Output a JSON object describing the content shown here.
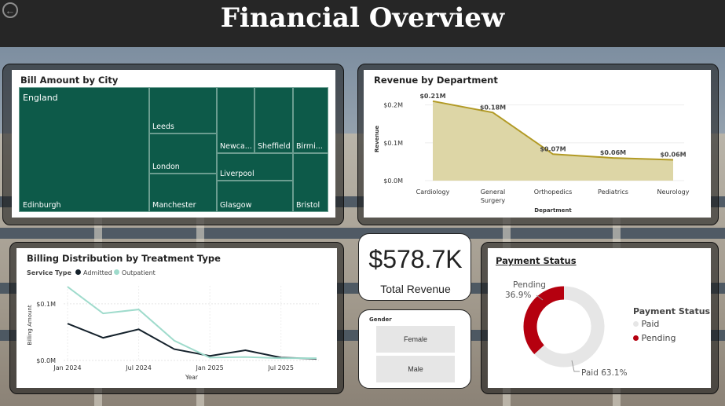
{
  "header": {
    "title": "Financial Overview",
    "back_icon": "arrow-left-circle-icon"
  },
  "colors": {
    "treemap": "#0d5a49",
    "area_line": "#b29a25",
    "area_fill": "#ddd6a6",
    "admitted": "#14212b",
    "outpatient": "#9fdbcc",
    "pending": "#b5000f",
    "paid": "#e6e6e6"
  },
  "treemap": {
    "title": "Bill Amount by City",
    "group_label": "England",
    "cities": [
      "Edinburgh",
      "Leeds",
      "London",
      "Manchester",
      "Newca...",
      "Sheffield",
      "Birmi...",
      "Liverpool",
      "Glasgow",
      "Bristol"
    ]
  },
  "revenue_chart": {
    "title": "Revenue by Department",
    "xlabel": "Department",
    "ylabel": "Revenue",
    "yticks": [
      "$0.2M",
      "$0.1M",
      "$0.0M"
    ],
    "data_labels": [
      "$0.21M",
      "$0.18M",
      "$0.07M",
      "$0.06M",
      "$0.06M"
    ],
    "categories": [
      [
        "Cardiology"
      ],
      [
        "General",
        "Surgery"
      ],
      [
        "Orthopedics"
      ],
      [
        "Pediatrics"
      ],
      [
        "Neurology"
      ]
    ]
  },
  "billing_chart": {
    "title": "Billing Distribution by Treatment Type",
    "legend_title": "Service Type",
    "series_names": [
      "Admitted",
      "Outpatient"
    ],
    "yticks": [
      "$0.1M",
      "$0.0M"
    ],
    "xticks": [
      "Jan 2024",
      "Jul 2024",
      "Jan 2025",
      "Jul 2025"
    ],
    "ylabel": "Billing Amount",
    "xlabel": "Year"
  },
  "kpi": {
    "value": "$578.7K",
    "label": "Total Revenue"
  },
  "gender_slicer": {
    "title": "Gender",
    "options": [
      "Female",
      "Male"
    ]
  },
  "payment": {
    "title": "Payment Status",
    "legend_title": "Payment Status",
    "legend": [
      "Paid",
      "Pending"
    ],
    "pending_label": "Pending",
    "pending_pct": "36.9%",
    "paid_label": "Paid 63.1%"
  },
  "chart_data": [
    {
      "type": "area",
      "title": "Revenue by Department",
      "categories": [
        "Cardiology",
        "General Surgery",
        "Orthopedics",
        "Pediatrics",
        "Neurology"
      ],
      "values": [
        0.21,
        0.18,
        0.07,
        0.06,
        0.055
      ],
      "ylim": [
        0,
        0.22
      ],
      "xlabel": "Department",
      "ylabel": "Revenue"
    },
    {
      "type": "line",
      "title": "Billing Distribution by Treatment Type",
      "x": [
        "2024-01",
        "2024-04",
        "2024-07",
        "2024-10",
        "2025-01",
        "2025-04",
        "2025-07",
        "2025-10"
      ],
      "series": [
        {
          "name": "Admitted",
          "values": [
            0.065,
            0.04,
            0.055,
            0.02,
            0.008,
            0.018,
            0.005,
            0.003
          ]
        },
        {
          "name": "Outpatient",
          "values": [
            0.13,
            0.083,
            0.09,
            0.035,
            0.005,
            0.006,
            0.004,
            0.004
          ]
        }
      ],
      "ylim": [
        0,
        0.14
      ],
      "xlabel": "Year",
      "ylabel": "Billing Amount"
    },
    {
      "type": "pie",
      "title": "Payment Status",
      "categories": [
        "Paid",
        "Pending"
      ],
      "values": [
        63.1,
        36.9
      ]
    }
  ]
}
